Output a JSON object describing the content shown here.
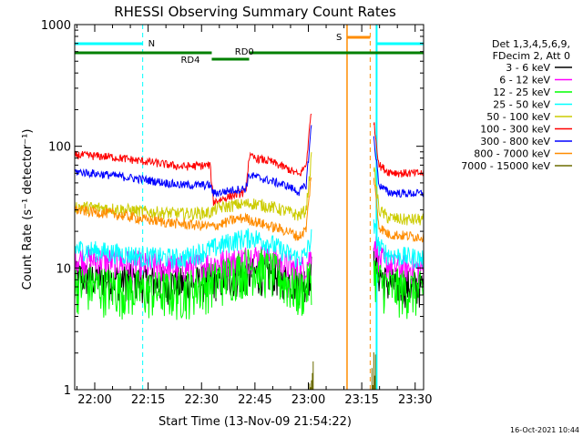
{
  "chart_data": {
    "type": "line",
    "title": "RHESSI Observing Summary Count Rates",
    "xlabel": "Start Time (13-Nov-09 21:54:22)",
    "ylabel": "Count Rate (s⁻¹ detector⁻¹)",
    "yscale": "log",
    "ylim": [
      1,
      1000
    ],
    "xlim_minutes": [
      0,
      98
    ],
    "x_tick_labels": [
      "22:00",
      "22:15",
      "22:30",
      "22:45",
      "23:00",
      "23:15",
      "23:30"
    ],
    "x_tick_minutes": [
      5.63,
      20.63,
      35.63,
      50.63,
      65.63,
      80.63,
      95.63
    ],
    "y_tick_labels": [
      "1",
      "10",
      "100",
      "1000"
    ],
    "y_tick_values": [
      1,
      10,
      100,
      1000
    ],
    "legend_header": [
      "Det 1,3,4,5,6,9,",
      "FDecim 2, Att 0"
    ],
    "annotations": {
      "night_label": "N",
      "saa_label": "S",
      "decim_labels": [
        "RD0",
        "RD4"
      ]
    },
    "night_intervals_minutes": [
      [
        0,
        19.1
      ],
      [
        84.8,
        98
      ]
    ],
    "saa_interval_minutes": [
      76.5,
      83.0
    ],
    "series": [
      {
        "name": "3 - 6 keV",
        "color": "#000000",
        "x": [
          0,
          10,
          20,
          30,
          40,
          45,
          50,
          55,
          60,
          63,
          65,
          66.5,
          70,
          76,
          82,
          84,
          85.5,
          88,
          92,
          98
        ],
        "values": [
          8.5,
          8.2,
          7.8,
          7.5,
          8.0,
          8.5,
          9.0,
          9.0,
          8.0,
          7.5,
          8.0,
          9.5,
          null,
          null,
          null,
          12.0,
          9.0,
          7.5,
          7.2,
          7.0
        ]
      },
      {
        "name": "6 - 12 keV",
        "color": "#ff00ff",
        "x": [
          0,
          10,
          20,
          30,
          40,
          45,
          50,
          55,
          60,
          63,
          65,
          66.5,
          70,
          76,
          82,
          84,
          85.5,
          88,
          92,
          98
        ],
        "values": [
          12.0,
          11.5,
          10.5,
          10.0,
          11.0,
          11.5,
          12.5,
          12.0,
          10.5,
          9.5,
          10.5,
          13.0,
          null,
          null,
          null,
          18.0,
          12.0,
          10.5,
          10.0,
          10.0
        ]
      },
      {
        "name": "12 - 25 keV",
        "color": "#00ff00",
        "x": [
          0,
          10,
          20,
          30,
          40,
          45,
          50,
          55,
          60,
          63,
          65,
          66.5,
          70,
          76,
          82,
          84,
          85.5,
          88,
          92,
          98
        ],
        "values": [
          7.5,
          7.0,
          6.5,
          6.5,
          8.0,
          9.5,
          10.5,
          9.5,
          7.5,
          6.5,
          7.0,
          9.0,
          null,
          null,
          null,
          9.5,
          8.0,
          7.0,
          6.8,
          6.5
        ]
      },
      {
        "name": "25 - 50 keV",
        "color": "#00ffff",
        "x": [
          0,
          10,
          20,
          30,
          40,
          45,
          50,
          55,
          60,
          63,
          65,
          66.5,
          70,
          76,
          82,
          84,
          85.5,
          88,
          92,
          98
        ],
        "values": [
          14.5,
          13.5,
          12.5,
          12.0,
          15.0,
          17.0,
          18.0,
          16.0,
          13.0,
          12.0,
          13.0,
          18.0,
          null,
          null,
          null,
          22.0,
          15.0,
          13.0,
          12.5,
          12.0
        ]
      },
      {
        "name": "50 - 100 keV",
        "color": "#cccc00",
        "x": [
          0,
          10,
          20,
          30,
          38,
          40,
          45,
          50,
          55,
          60,
          63,
          65,
          66.5,
          70,
          76,
          82,
          84,
          85.5,
          88,
          92,
          98
        ],
        "values": [
          32.0,
          31.0,
          29.0,
          28.0,
          28.5,
          31.0,
          33.0,
          34.0,
          32.0,
          29.0,
          27.0,
          30.0,
          80.0,
          null,
          null,
          null,
          70.0,
          30.0,
          26.0,
          25.0,
          25.0
        ]
      },
      {
        "name": "100 - 300 keV",
        "color": "#ff0000",
        "x": [
          0,
          10,
          20,
          30,
          38,
          39,
          45,
          48,
          49,
          55,
          60,
          63,
          65,
          66.5,
          70,
          76,
          82,
          84,
          85.5,
          88,
          92,
          98
        ],
        "values": [
          85.0,
          82.0,
          75.0,
          68.0,
          70.0,
          35.0,
          40.0,
          42.0,
          82.0,
          75.0,
          65.0,
          58.0,
          70.0,
          200.0,
          null,
          null,
          null,
          160.0,
          70.0,
          62.0,
          60.0,
          60.0
        ]
      },
      {
        "name": "300 - 800 keV",
        "color": "#0000ff",
        "x": [
          0,
          10,
          20,
          30,
          38,
          39,
          45,
          48,
          49,
          55,
          60,
          63,
          65,
          66.5,
          70,
          76,
          82,
          84,
          85.5,
          88,
          92,
          98
        ],
        "values": [
          62.0,
          58.0,
          53.0,
          48.0,
          48.0,
          41.0,
          44.0,
          45.0,
          58.0,
          52.0,
          47.0,
          42.0,
          48.0,
          150.0,
          null,
          null,
          null,
          120.0,
          48.0,
          42.0,
          41.0,
          41.0
        ]
      },
      {
        "name": "800 - 7000 keV",
        "color": "#ff8c00",
        "x": [
          0,
          10,
          20,
          30,
          38,
          39,
          45,
          48,
          49,
          55,
          60,
          63,
          65,
          66.5,
          70,
          76,
          82,
          84,
          85.5,
          88,
          92,
          98
        ],
        "values": [
          30.0,
          28.0,
          25.0,
          23.0,
          22.0,
          22.0,
          25.0,
          26.0,
          25.0,
          22.0,
          20.0,
          18.0,
          21.0,
          60.0,
          null,
          null,
          null,
          55.0,
          22.0,
          19.0,
          18.5,
          18.0
        ]
      },
      {
        "name": "7000 - 15000 keV",
        "color": "#6b6b00",
        "x": [
          0,
          65.5,
          66.5,
          76,
          82,
          84,
          85.5,
          98
        ],
        "values": [
          null,
          null,
          1.7,
          null,
          null,
          1.8,
          null,
          null
        ]
      }
    ]
  },
  "footer": {
    "date_stamp": "16-Oct-2021 10:44"
  }
}
